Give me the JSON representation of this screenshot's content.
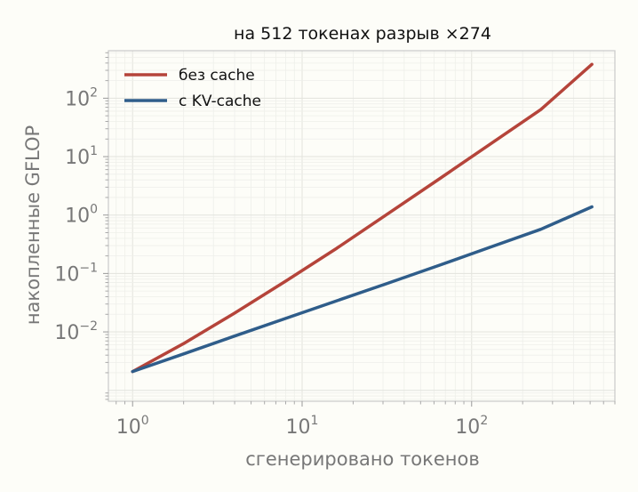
{
  "chart_data": {
    "type": "line",
    "title": "на 512 токенах разрыв ×274",
    "xlabel": "сгенерировано токенов",
    "ylabel": "накопленные GFLOP",
    "xscale": "log",
    "yscale": "log",
    "xlim": [
      0.72,
      700
    ],
    "ylim": [
      0.00065,
      650
    ],
    "x_ticks": [
      {
        "value": 1,
        "base": "10",
        "exp": "0"
      },
      {
        "value": 10,
        "base": "10",
        "exp": "1"
      },
      {
        "value": 100,
        "base": "10",
        "exp": "2"
      }
    ],
    "y_ticks": [
      {
        "value": 0.01,
        "base": "10",
        "exp": "−2"
      },
      {
        "value": 0.1,
        "base": "10",
        "exp": "−1"
      },
      {
        "value": 1,
        "base": "10",
        "exp": "0"
      },
      {
        "value": 10,
        "base": "10",
        "exp": "1"
      },
      {
        "value": 100,
        "base": "10",
        "exp": "2"
      }
    ],
    "grid": true,
    "legend_position": "top-left",
    "series": [
      {
        "name": "без cache",
        "color": "#b5443a",
        "x": [
          1,
          2,
          4,
          8,
          16,
          32,
          64,
          128,
          256,
          512
        ],
        "y": [
          0.0021,
          0.0063,
          0.021,
          0.074,
          0.27,
          1.05,
          4.1,
          16.2,
          64,
          380
        ]
      },
      {
        "name": "с KV-cache",
        "color": "#2f5d8a",
        "x": [
          1,
          2,
          4,
          8,
          16,
          32,
          64,
          128,
          256,
          512
        ],
        "y": [
          0.0021,
          0.0042,
          0.0085,
          0.017,
          0.034,
          0.068,
          0.137,
          0.28,
          0.57,
          1.38
        ]
      }
    ]
  }
}
